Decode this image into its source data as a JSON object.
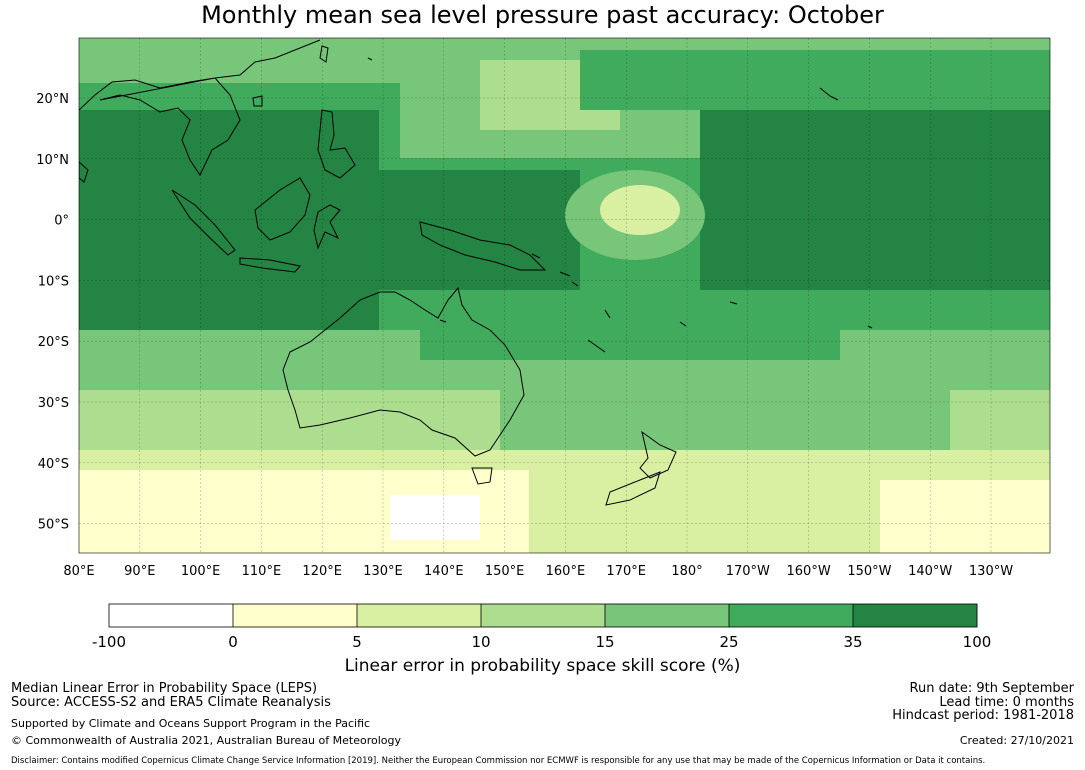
{
  "title": "Monthly mean sea level pressure past accuracy: October",
  "lat_labels": [
    "20°N",
    "10°N",
    "0°",
    "10°S",
    "20°S",
    "30°S",
    "40°S",
    "50°S"
  ],
  "lon_labels": [
    "80°E",
    "90°E",
    "100°E",
    "110°E",
    "120°E",
    "130°E",
    "140°E",
    "150°E",
    "160°E",
    "170°E",
    "180°",
    "170°W",
    "160°W",
    "150°W",
    "140°W",
    "130°W"
  ],
  "colorbar": {
    "label": "Linear error in probability space skill score (%)",
    "ticks": [
      "-100",
      "0",
      "5",
      "10",
      "15",
      "25",
      "35",
      "100"
    ],
    "colors": [
      "#ffffff",
      "#ffffcc",
      "#d9f0a3",
      "#addd8e",
      "#78c679",
      "#41ab5d",
      "#238443"
    ]
  },
  "footer": {
    "left1": "Median Linear Error in Probability Space (LEPS)",
    "left2": "Source: ACCESS-S2 and ERA5 Climate Reanalysis",
    "left3": "Supported by Climate and Oceans Support Program in the Pacific",
    "left4": "© Commonwealth of Australia 2021, Australian Bureau of Meteorology",
    "right1": "Run date: 9th September",
    "right2": "Lead time: 0 months",
    "right3": "Hindcast period: 1981-2018",
    "right4": "Created: 27/10/2021",
    "disclaimer": "Disclaimer: Contains modified Copernicus Climate Change Service Information [2019]. Neither the European Commission nor ECMWF is responsible for any use that may be made of the Copernicus Information or Data it contains."
  }
}
